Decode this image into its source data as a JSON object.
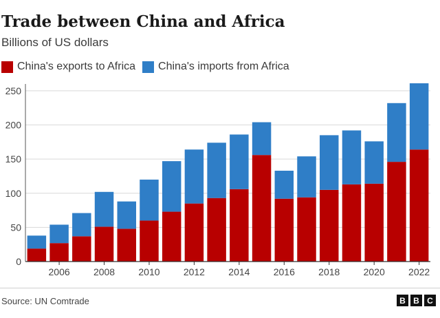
{
  "title": "Trade between China and Africa",
  "subtitle": "Billions of US dollars",
  "source": "Source: UN Comtrade",
  "logo": [
    "B",
    "B",
    "C"
  ],
  "colors": {
    "exports": "#b80000",
    "imports": "#2f7ec7",
    "grid": "#d9d9d9",
    "axis": "#555555"
  },
  "chart_data": {
    "type": "bar",
    "stacked": true,
    "categories": [
      "2005",
      "2006",
      "2007",
      "2008",
      "2009",
      "2010",
      "2011",
      "2012",
      "2013",
      "2014",
      "2015",
      "2016",
      "2017",
      "2018",
      "2019",
      "2020",
      "2021",
      "2022"
    ],
    "x_tick_labels": [
      "2006",
      "2008",
      "2010",
      "2012",
      "2014",
      "2016",
      "2018",
      "2020",
      "2022"
    ],
    "series": [
      {
        "name": "China's exports to Africa",
        "values": [
          19,
          27,
          37,
          51,
          48,
          60,
          73,
          85,
          93,
          106,
          156,
          92,
          94,
          105,
          113,
          114,
          146,
          164
        ]
      },
      {
        "name": "China's imports from Africa",
        "values": [
          19,
          27,
          34,
          51,
          40,
          60,
          74,
          79,
          81,
          80,
          48,
          41,
          60,
          80,
          79,
          62,
          86,
          97
        ]
      }
    ],
    "ylim": [
      0,
      260
    ],
    "yticks": [
      0,
      50,
      100,
      150,
      200,
      250
    ],
    "grid": true,
    "legend": "top-left"
  }
}
